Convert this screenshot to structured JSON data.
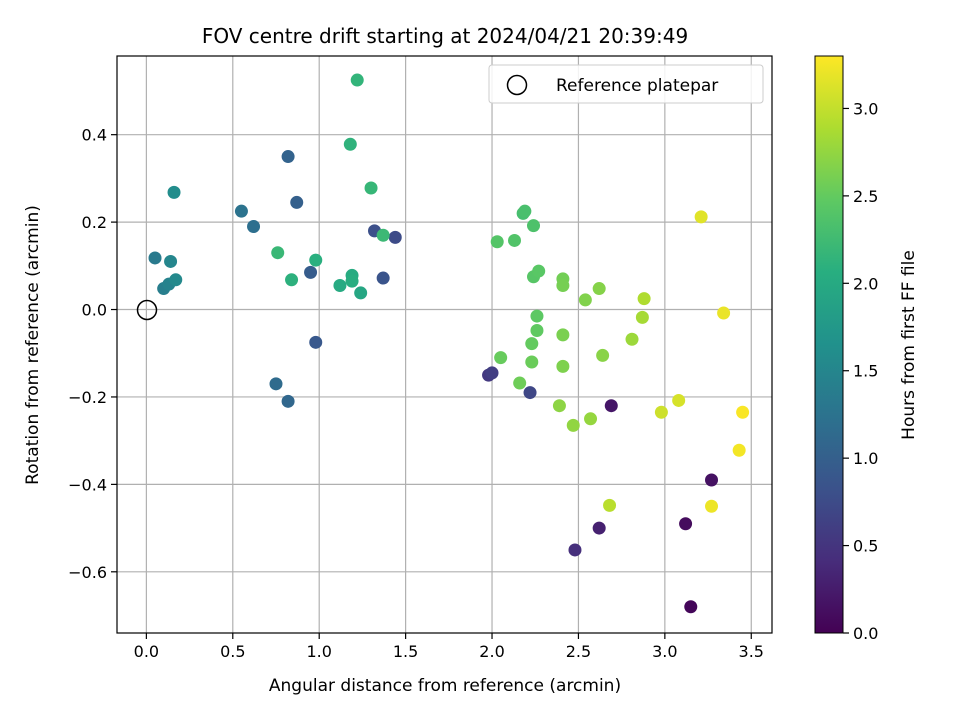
{
  "chart_data": {
    "type": "scatter",
    "title": "FOV centre drift starting at 2024/04/21 20:39:49",
    "xlabel": "Angular distance from reference (arcmin)",
    "ylabel": "Rotation from reference (arcmin)",
    "xlim": [
      -0.17,
      3.62
    ],
    "ylim": [
      -0.74,
      0.58
    ],
    "x_ticks": [
      0.0,
      0.5,
      1.0,
      1.5,
      2.0,
      2.5,
      3.0,
      3.5
    ],
    "x_tick_labels": [
      "0.0",
      "0.5",
      "1.0",
      "1.5",
      "2.0",
      "2.5",
      "3.0",
      "3.5"
    ],
    "y_ticks": [
      -0.6,
      -0.4,
      -0.2,
      0.0,
      0.2,
      0.4
    ],
    "y_tick_labels": [
      "−0.6",
      "−0.4",
      "−0.2",
      "0.0",
      "0.2",
      "0.4"
    ],
    "grid": true,
    "legend": {
      "placement": "top-right",
      "entries": [
        "Reference platepar"
      ]
    },
    "reference": {
      "x": 0.0,
      "y": 0.0,
      "label": "Reference platepar"
    },
    "colorbar": {
      "label": "Hours from first FF file",
      "range": [
        0.0,
        3.3
      ],
      "ticks": [
        0.0,
        0.5,
        1.0,
        1.5,
        2.0,
        2.5,
        3.0
      ],
      "tick_labels": [
        "0.0",
        "0.5",
        "1.0",
        "1.5",
        "2.0",
        "2.5",
        "3.0"
      ],
      "colormap": "viridis"
    },
    "points": [
      {
        "x": 3.15,
        "y": -0.68,
        "h": 0.05
      },
      {
        "x": 3.12,
        "y": -0.49,
        "h": 0.1
      },
      {
        "x": 3.27,
        "y": -0.39,
        "h": 0.15
      },
      {
        "x": 2.69,
        "y": -0.22,
        "h": 0.2
      },
      {
        "x": 2.62,
        "y": -0.5,
        "h": 0.3
      },
      {
        "x": 2.48,
        "y": -0.55,
        "h": 0.45
      },
      {
        "x": 1.98,
        "y": -0.15,
        "h": 0.55
      },
      {
        "x": 2.0,
        "y": -0.145,
        "h": 0.6
      },
      {
        "x": 2.22,
        "y": -0.19,
        "h": 0.7
      },
      {
        "x": 1.44,
        "y": 0.165,
        "h": 0.75
      },
      {
        "x": 1.32,
        "y": 0.18,
        "h": 0.8
      },
      {
        "x": 1.37,
        "y": 0.072,
        "h": 0.85
      },
      {
        "x": 0.98,
        "y": -0.075,
        "h": 0.9
      },
      {
        "x": 0.95,
        "y": 0.085,
        "h": 0.95
      },
      {
        "x": 0.87,
        "y": 0.245,
        "h": 1.0
      },
      {
        "x": 0.82,
        "y": 0.35,
        "h": 1.05
      },
      {
        "x": 0.82,
        "y": -0.21,
        "h": 1.1
      },
      {
        "x": 0.75,
        "y": -0.17,
        "h": 1.15
      },
      {
        "x": 0.62,
        "y": 0.19,
        "h": 1.2
      },
      {
        "x": 0.55,
        "y": 0.225,
        "h": 1.25
      },
      {
        "x": 0.05,
        "y": 0.118,
        "h": 1.35
      },
      {
        "x": 0.1,
        "y": 0.048,
        "h": 1.4
      },
      {
        "x": 0.13,
        "y": 0.058,
        "h": 1.45
      },
      {
        "x": 0.14,
        "y": 0.11,
        "h": 1.5
      },
      {
        "x": 0.17,
        "y": 0.068,
        "h": 1.55
      },
      {
        "x": 0.16,
        "y": 0.268,
        "h": 1.6
      },
      {
        "x": 1.24,
        "y": 0.038,
        "h": 1.95
      },
      {
        "x": 1.12,
        "y": 0.055,
        "h": 2.0
      },
      {
        "x": 1.19,
        "y": 0.078,
        "h": 2.02
      },
      {
        "x": 1.19,
        "y": 0.065,
        "h": 2.05
      },
      {
        "x": 0.98,
        "y": 0.113,
        "h": 2.08
      },
      {
        "x": 0.84,
        "y": 0.068,
        "h": 2.1
      },
      {
        "x": 1.18,
        "y": 0.378,
        "h": 2.12
      },
      {
        "x": 1.22,
        "y": 0.525,
        "h": 2.15
      },
      {
        "x": 1.3,
        "y": 0.278,
        "h": 2.18
      },
      {
        "x": 0.76,
        "y": 0.13,
        "h": 2.2
      },
      {
        "x": 1.37,
        "y": 0.17,
        "h": 2.22
      },
      {
        "x": 2.18,
        "y": 0.22,
        "h": 2.3
      },
      {
        "x": 2.19,
        "y": 0.225,
        "h": 2.32
      },
      {
        "x": 2.24,
        "y": 0.192,
        "h": 2.35
      },
      {
        "x": 2.13,
        "y": 0.158,
        "h": 2.38
      },
      {
        "x": 2.03,
        "y": 0.155,
        "h": 2.4
      },
      {
        "x": 2.24,
        "y": 0.075,
        "h": 2.42
      },
      {
        "x": 2.27,
        "y": 0.088,
        "h": 2.44
      },
      {
        "x": 2.26,
        "y": -0.015,
        "h": 2.46
      },
      {
        "x": 2.26,
        "y": -0.048,
        "h": 2.48
      },
      {
        "x": 2.23,
        "y": -0.078,
        "h": 2.5
      },
      {
        "x": 2.05,
        "y": -0.11,
        "h": 2.52
      },
      {
        "x": 2.23,
        "y": -0.12,
        "h": 2.54
      },
      {
        "x": 2.16,
        "y": -0.168,
        "h": 2.56
      },
      {
        "x": 2.41,
        "y": 0.07,
        "h": 2.58
      },
      {
        "x": 2.41,
        "y": 0.055,
        "h": 2.6
      },
      {
        "x": 2.41,
        "y": -0.058,
        "h": 2.62
      },
      {
        "x": 2.41,
        "y": -0.13,
        "h": 2.64
      },
      {
        "x": 2.54,
        "y": 0.022,
        "h": 2.66
      },
      {
        "x": 2.62,
        "y": 0.048,
        "h": 2.68
      },
      {
        "x": 2.64,
        "y": -0.105,
        "h": 2.7
      },
      {
        "x": 2.39,
        "y": -0.22,
        "h": 2.72
      },
      {
        "x": 2.47,
        "y": -0.265,
        "h": 2.74
      },
      {
        "x": 2.57,
        "y": -0.25,
        "h": 2.76
      },
      {
        "x": 2.81,
        "y": -0.068,
        "h": 2.8
      },
      {
        "x": 2.87,
        "y": -0.018,
        "h": 2.85
      },
      {
        "x": 2.88,
        "y": 0.025,
        "h": 2.9
      },
      {
        "x": 2.68,
        "y": -0.448,
        "h": 2.95
      },
      {
        "x": 2.98,
        "y": -0.235,
        "h": 3.05
      },
      {
        "x": 3.08,
        "y": -0.208,
        "h": 3.1
      },
      {
        "x": 3.21,
        "y": 0.212,
        "h": 3.15
      },
      {
        "x": 3.34,
        "y": -0.008,
        "h": 3.2
      },
      {
        "x": 3.27,
        "y": -0.45,
        "h": 3.22
      },
      {
        "x": 3.43,
        "y": -0.322,
        "h": 3.25
      },
      {
        "x": 3.45,
        "y": -0.235,
        "h": 3.28
      }
    ]
  }
}
